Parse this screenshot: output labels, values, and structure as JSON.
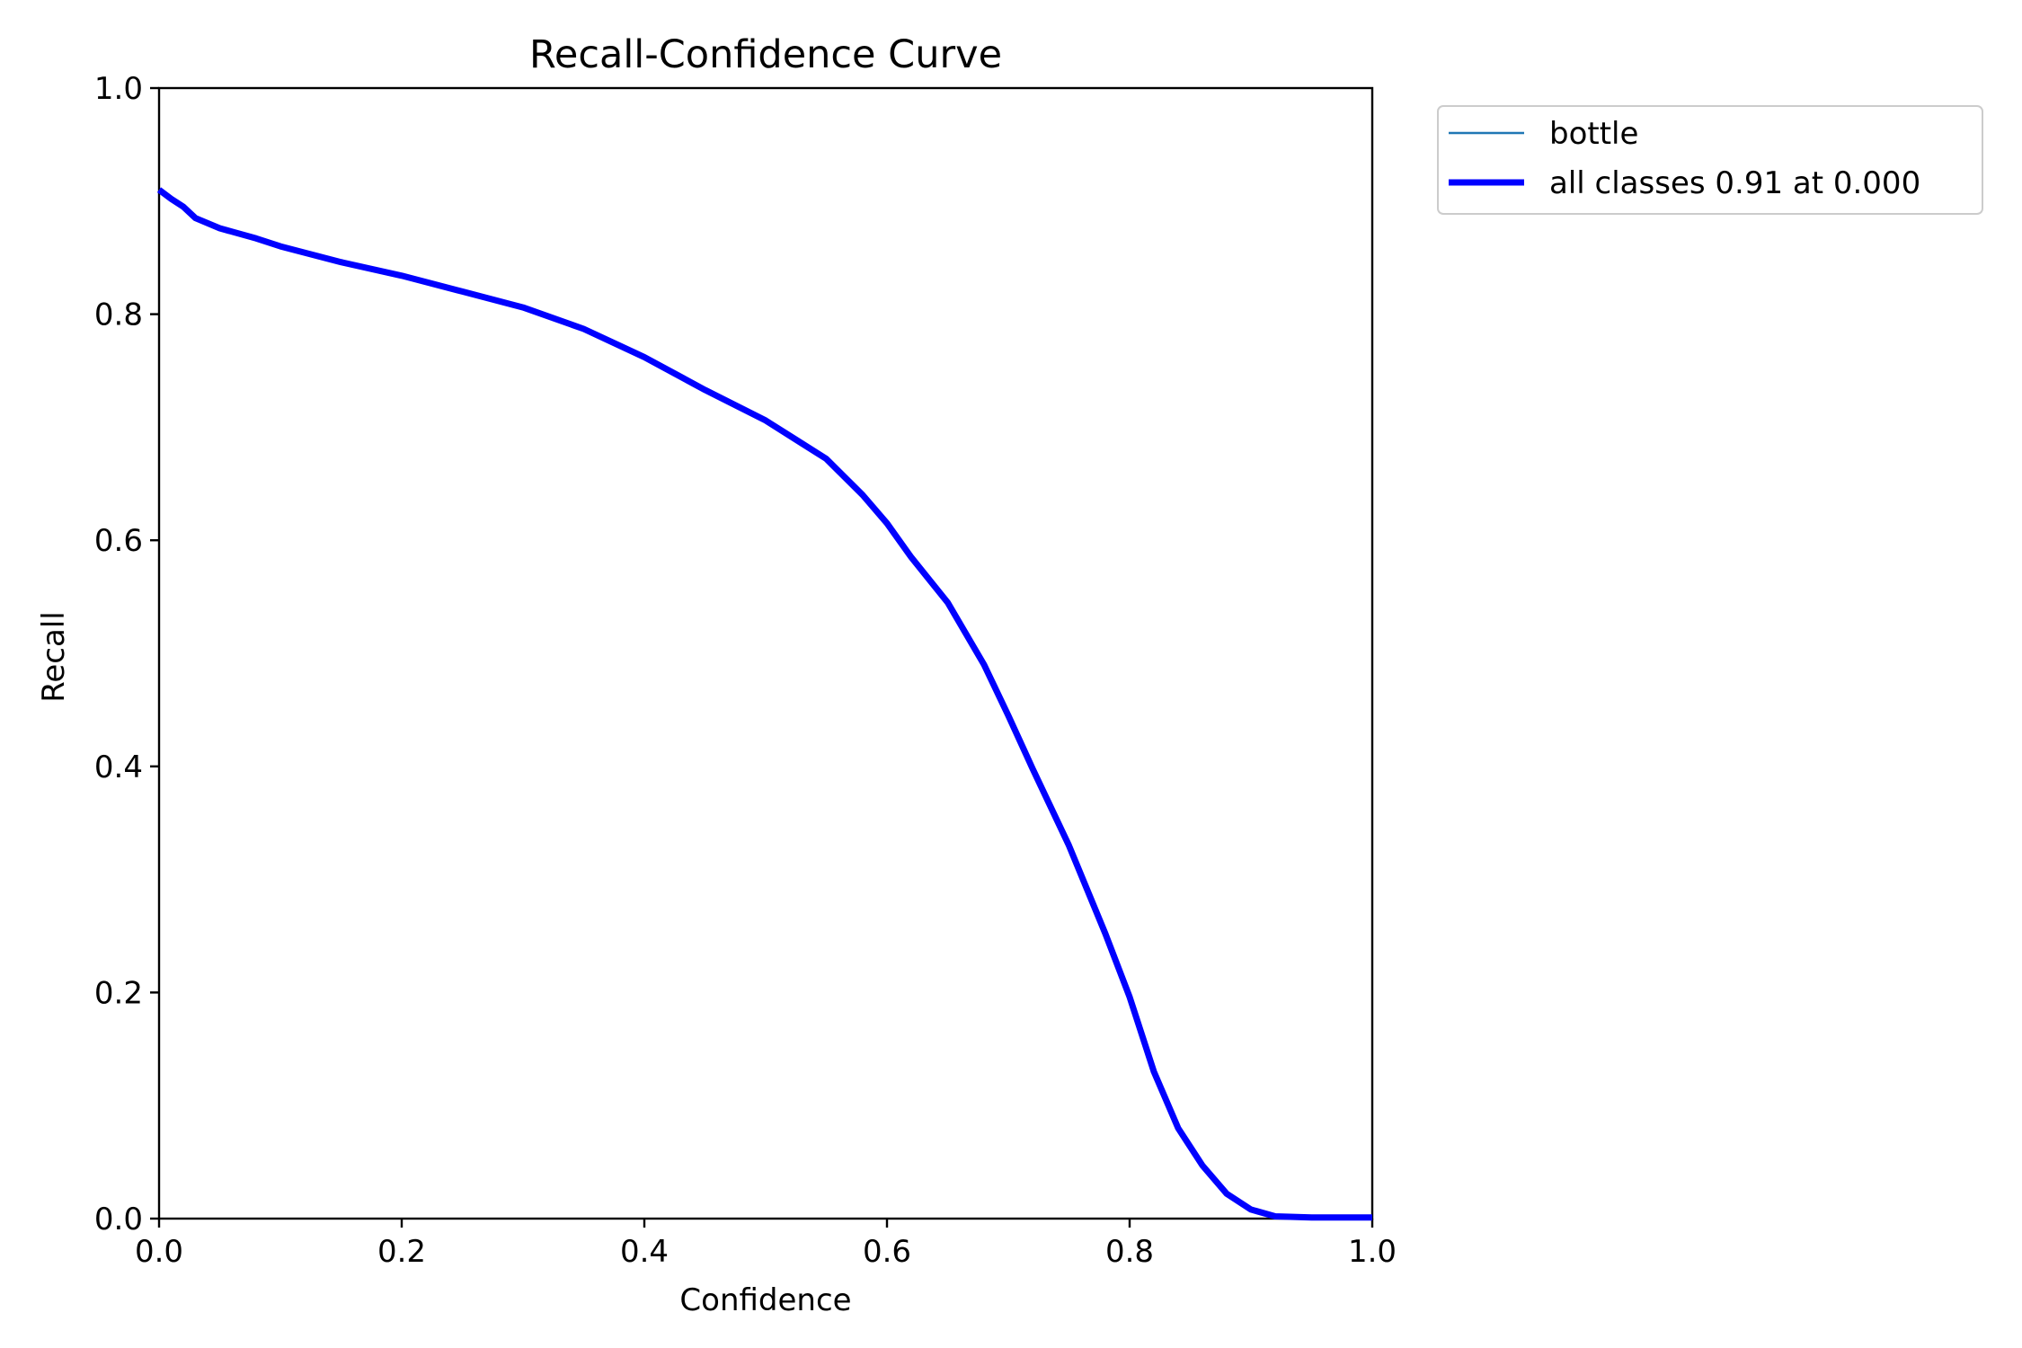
{
  "chart_data": {
    "type": "line",
    "title": "Recall-Confidence Curve",
    "xlabel": "Confidence",
    "ylabel": "Recall",
    "xlim": [
      0.0,
      1.0
    ],
    "ylim": [
      0.0,
      1.0
    ],
    "xticks": [
      "0.0",
      "0.2",
      "0.4",
      "0.6",
      "0.8",
      "1.0"
    ],
    "yticks": [
      "0.0",
      "0.2",
      "0.4",
      "0.6",
      "0.8",
      "1.0"
    ],
    "grid": false,
    "legend_position": "outside top-right",
    "series": [
      {
        "name": "bottle",
        "color": "#1f77b4",
        "line_style": "thin",
        "points": [
          [
            0.0,
            0.91
          ],
          [
            0.01,
            0.902
          ],
          [
            0.02,
            0.895
          ],
          [
            0.03,
            0.885
          ],
          [
            0.05,
            0.876
          ],
          [
            0.08,
            0.867
          ],
          [
            0.1,
            0.86
          ],
          [
            0.15,
            0.846
          ],
          [
            0.2,
            0.834
          ],
          [
            0.25,
            0.82
          ],
          [
            0.3,
            0.806
          ],
          [
            0.35,
            0.787
          ],
          [
            0.4,
            0.762
          ],
          [
            0.45,
            0.733
          ],
          [
            0.5,
            0.706
          ],
          [
            0.55,
            0.672
          ],
          [
            0.58,
            0.64
          ],
          [
            0.6,
            0.615
          ],
          [
            0.62,
            0.585
          ],
          [
            0.65,
            0.545
          ],
          [
            0.68,
            0.49
          ],
          [
            0.7,
            0.445
          ],
          [
            0.72,
            0.398
          ],
          [
            0.75,
            0.33
          ],
          [
            0.78,
            0.252
          ],
          [
            0.8,
            0.196
          ],
          [
            0.82,
            0.13
          ],
          [
            0.84,
            0.08
          ],
          [
            0.86,
            0.047
          ],
          [
            0.88,
            0.022
          ],
          [
            0.9,
            0.008
          ],
          [
            0.92,
            0.002
          ],
          [
            0.95,
            0.001
          ],
          [
            1.0,
            0.001
          ]
        ]
      },
      {
        "name": "all classes 0.91 at 0.000",
        "color": "#0000ff",
        "line_style": "thick",
        "points": [
          [
            0.0,
            0.91
          ],
          [
            0.01,
            0.902
          ],
          [
            0.02,
            0.895
          ],
          [
            0.03,
            0.885
          ],
          [
            0.05,
            0.876
          ],
          [
            0.08,
            0.867
          ],
          [
            0.1,
            0.86
          ],
          [
            0.15,
            0.846
          ],
          [
            0.2,
            0.834
          ],
          [
            0.25,
            0.82
          ],
          [
            0.3,
            0.806
          ],
          [
            0.35,
            0.787
          ],
          [
            0.4,
            0.762
          ],
          [
            0.45,
            0.733
          ],
          [
            0.5,
            0.706
          ],
          [
            0.55,
            0.672
          ],
          [
            0.58,
            0.64
          ],
          [
            0.6,
            0.615
          ],
          [
            0.62,
            0.585
          ],
          [
            0.65,
            0.545
          ],
          [
            0.68,
            0.49
          ],
          [
            0.7,
            0.445
          ],
          [
            0.72,
            0.398
          ],
          [
            0.75,
            0.33
          ],
          [
            0.78,
            0.252
          ],
          [
            0.8,
            0.196
          ],
          [
            0.82,
            0.13
          ],
          [
            0.84,
            0.08
          ],
          [
            0.86,
            0.047
          ],
          [
            0.88,
            0.022
          ],
          [
            0.9,
            0.008
          ],
          [
            0.92,
            0.002
          ],
          [
            0.95,
            0.001
          ],
          [
            1.0,
            0.001
          ]
        ]
      }
    ]
  }
}
